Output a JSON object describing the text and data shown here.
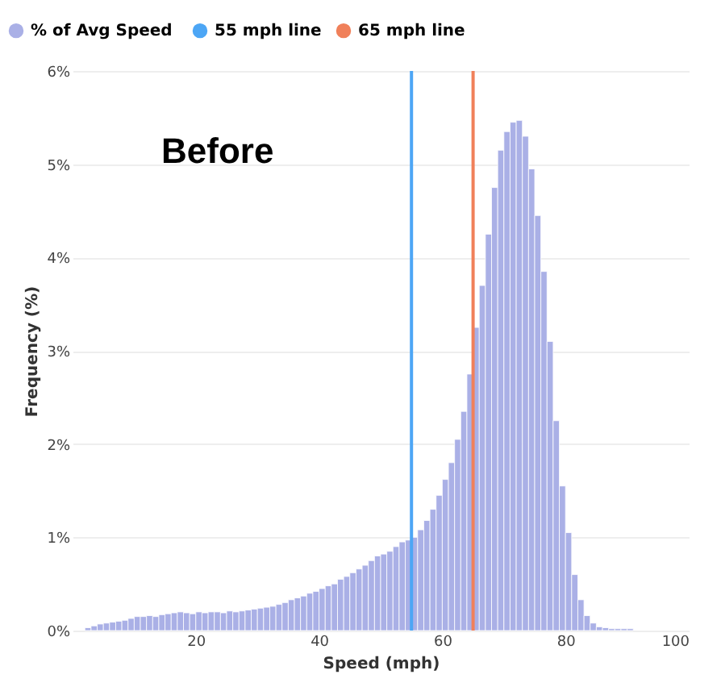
{
  "chart_data": {
    "type": "histogram",
    "xlabel": "Speed (mph)",
    "ylabel": "Frequency (%)",
    "bins": [
      2,
      3,
      4,
      5,
      6,
      7,
      8,
      9,
      10,
      11,
      12,
      13,
      14,
      15,
      16,
      17,
      18,
      19,
      20,
      21,
      22,
      23,
      24,
      25,
      26,
      27,
      28,
      29,
      30,
      31,
      32,
      33,
      34,
      35,
      36,
      37,
      38,
      39,
      40,
      41,
      42,
      43,
      44,
      45,
      46,
      47,
      48,
      49,
      50,
      51,
      52,
      53,
      54,
      55,
      56,
      57,
      58,
      59,
      60,
      61,
      62,
      63,
      64,
      65,
      66,
      67,
      68,
      69,
      70,
      71,
      72,
      73,
      74,
      75,
      76,
      77,
      78,
      79,
      80,
      81,
      82,
      83,
      84,
      85,
      86,
      87,
      88,
      89,
      90,
      91
    ],
    "series": [
      {
        "name": "% of  Avg Speed",
        "color": "#aab0e6",
        "values": [
          0.03,
          0.05,
          0.07,
          0.08,
          0.09,
          0.1,
          0.11,
          0.13,
          0.15,
          0.15,
          0.16,
          0.15,
          0.17,
          0.18,
          0.19,
          0.2,
          0.19,
          0.18,
          0.2,
          0.19,
          0.2,
          0.2,
          0.19,
          0.21,
          0.2,
          0.21,
          0.22,
          0.23,
          0.24,
          0.25,
          0.26,
          0.28,
          0.3,
          0.33,
          0.35,
          0.37,
          0.4,
          0.42,
          0.45,
          0.48,
          0.5,
          0.55,
          0.58,
          0.62,
          0.66,
          0.7,
          0.75,
          0.8,
          0.82,
          0.85,
          0.9,
          0.95,
          0.97,
          1.0,
          1.08,
          1.18,
          1.3,
          1.45,
          1.62,
          1.8,
          2.05,
          2.35,
          2.75,
          3.25,
          3.7,
          4.25,
          4.75,
          5.15,
          5.35,
          5.45,
          5.47,
          5.3,
          4.95,
          4.45,
          3.85,
          3.1,
          2.25,
          1.55,
          1.05,
          0.6,
          0.33,
          0.16,
          0.08,
          0.04,
          0.03,
          0.02,
          0.02,
          0.02,
          0.02
        ]
      }
    ],
    "ref_lines": [
      {
        "axis": "x",
        "value": 55,
        "label": "55 mph line",
        "color": "#4da6f5"
      },
      {
        "axis": "x",
        "value": 65,
        "label": "65 mph line",
        "color": "#f0805a"
      }
    ],
    "annotations": [
      "Before"
    ],
    "xlim": [
      0,
      100
    ],
    "xticks": [
      20,
      40,
      60,
      80,
      100
    ],
    "ylim": [
      0,
      6
    ],
    "yticks": [
      {
        "value": 0,
        "label": "0%"
      },
      {
        "value": 1,
        "label": "1%"
      },
      {
        "value": 2,
        "label": "2%"
      },
      {
        "value": 3,
        "label": "3%"
      },
      {
        "value": 4,
        "label": "4%"
      },
      {
        "value": 5,
        "label": "5%"
      },
      {
        "value": 6,
        "label": "6%"
      }
    ],
    "grid": "y",
    "legend": "top left"
  }
}
